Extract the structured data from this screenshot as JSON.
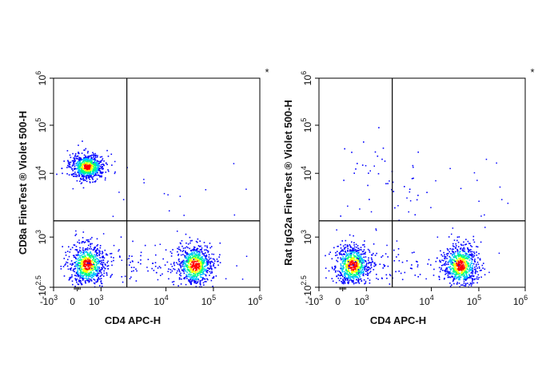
{
  "chart_data": [
    {
      "type": "scatter",
      "subtype": "flow-cytometry-density-dot-plot",
      "xlabel": "CD4 APC-H",
      "ylabel": "CD8a FineTest ® Violet 500-H",
      "x_scale": "biexponential",
      "y_scale": "biexponential",
      "xlim": [
        -1000,
        1000000
      ],
      "ylim": [
        -316,
        1000000
      ],
      "x_ticks": [
        {
          "value": -1000,
          "base": "-10",
          "exp": "3"
        },
        {
          "value": 0,
          "base": "0",
          "exp": ""
        },
        {
          "value": 1000,
          "base": "10",
          "exp": "3"
        },
        {
          "value": 10000,
          "base": "10",
          "exp": "4"
        },
        {
          "value": 100000,
          "base": "10",
          "exp": "5"
        },
        {
          "value": 1000000,
          "base": "10",
          "exp": "6"
        }
      ],
      "y_ticks": [
        {
          "value": -316,
          "base": "-10",
          "exp": "2.5"
        },
        {
          "value": 1000,
          "base": "10",
          "exp": "3"
        },
        {
          "value": 10000,
          "base": "10",
          "exp": "4"
        },
        {
          "value": 100000,
          "base": "10",
          "exp": "5"
        },
        {
          "value": 1000000,
          "base": "10",
          "exp": "6"
        }
      ],
      "gates": {
        "x": 2500,
        "y": 1800
      },
      "corner_mark": "*",
      "grid": false,
      "populations": [
        {
          "x": 400,
          "y": 14000,
          "density": 0.95
        },
        {
          "x": 400,
          "y": 320,
          "density": 1.0
        },
        {
          "x": 40000,
          "y": 300,
          "density": 1.0
        },
        {
          "x": 2500,
          "y": 300,
          "density": 0.15
        }
      ]
    },
    {
      "type": "scatter",
      "subtype": "flow-cytometry-density-dot-plot",
      "xlabel": "CD4 APC-H",
      "ylabel": "Rat IgG2a FineTest ® Violet 500-H",
      "x_scale": "biexponential",
      "y_scale": "biexponential",
      "xlim": [
        -1000,
        1000000
      ],
      "ylim": [
        -316,
        1000000
      ],
      "x_ticks": [
        {
          "value": -1000,
          "base": "-10",
          "exp": "3"
        },
        {
          "value": 0,
          "base": "0",
          "exp": ""
        },
        {
          "value": 1000,
          "base": "10",
          "exp": "3"
        },
        {
          "value": 10000,
          "base": "10",
          "exp": "4"
        },
        {
          "value": 100000,
          "base": "10",
          "exp": "5"
        },
        {
          "value": 1000000,
          "base": "10",
          "exp": "6"
        }
      ],
      "y_ticks": [
        {
          "value": -316,
          "base": "-10",
          "exp": "2.5"
        },
        {
          "value": 1000,
          "base": "10",
          "exp": "3"
        },
        {
          "value": 10000,
          "base": "10",
          "exp": "4"
        },
        {
          "value": 100000,
          "base": "10",
          "exp": "5"
        },
        {
          "value": 1000000,
          "base": "10",
          "exp": "6"
        }
      ],
      "gates": {
        "x": 2500,
        "y": 1800
      },
      "corner_mark": "*",
      "grid": false,
      "populations": [
        {
          "x": 400,
          "y": 300,
          "density": 1.0
        },
        {
          "x": 40000,
          "y": 300,
          "density": 1.0
        },
        {
          "x": 2500,
          "y": 300,
          "density": 0.15
        },
        {
          "x": 1500,
          "y": 8000,
          "density": 0.05
        }
      ]
    }
  ],
  "colors": {
    "axis": "#000000",
    "density_low": "#0000ff",
    "density_mid_low": "#00c0ff",
    "density_mid": "#00ff80",
    "density_mid_high": "#ffff00",
    "density_high": "#ff0000"
  }
}
